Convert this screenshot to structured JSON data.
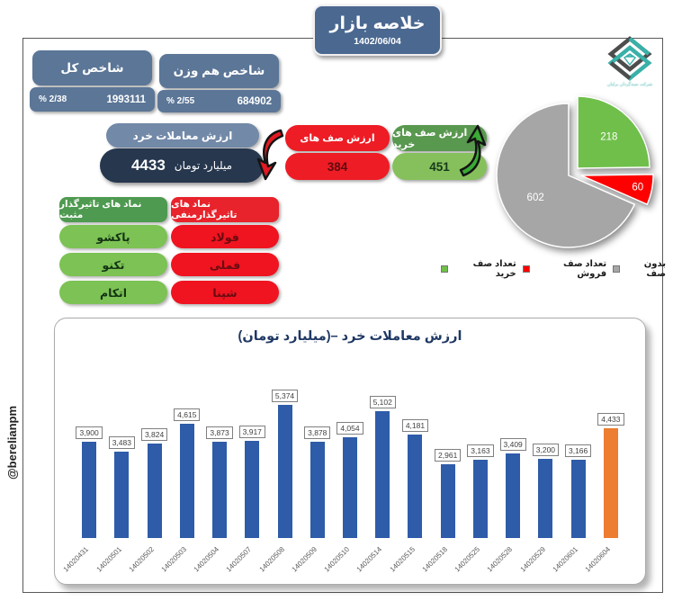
{
  "page": {
    "title": "خلاصه بازار",
    "date": "1402/06/04",
    "watermark": "@berelianpm",
    "logo_caption": "شرکت سبدگردان برلیان"
  },
  "indices": {
    "total": {
      "label": "شاخص کل",
      "value": "1993111",
      "change": "% 2/38"
    },
    "equal_weight": {
      "label": "شاخص هم وزن",
      "value": "684902",
      "change": "% 2/55"
    }
  },
  "retail_trade": {
    "label": "ارزش معاملات خرد",
    "value": "4433",
    "unit": "میلیارد تومان"
  },
  "queues": {
    "sell": {
      "label": "ارزش صف های",
      "value": "384"
    },
    "buy": {
      "label": "ارزش صف های خرید",
      "value": "451"
    }
  },
  "symbols": {
    "positive": {
      "header": "نماد های تاثیرگذار مثبت",
      "items": [
        "پاکشو",
        "تکنو",
        "اتکام"
      ]
    },
    "negative": {
      "header": "نماد های تاثیرگذارمنفی",
      "items": [
        "فولاد",
        "فملی",
        "شپنا"
      ]
    }
  },
  "chart_data": [
    {
      "type": "pie",
      "title": "",
      "labels": [
        "تعداد صف خرید",
        "تعداد صف فروش",
        "بدون صف"
      ],
      "values": [
        218,
        60,
        602
      ],
      "colors": [
        "#6fbf4a",
        "#fe0000",
        "#a6a6a6"
      ],
      "legend": [
        {
          "label": "بدون صف",
          "color": "#a6a6a6"
        },
        {
          "label": "تعداد صف فروش",
          "color": "#fe0000"
        },
        {
          "label": "تعداد صف خرید",
          "color": "#6fbf4a"
        }
      ],
      "legend_position": "bottom"
    },
    {
      "type": "bar",
      "title": "ارزش معاملات خرد –(میلیارد تومان)",
      "categories": [
        "14020431",
        "14020501",
        "14020502",
        "14020503",
        "14020504",
        "14020507",
        "14020508",
        "14020509",
        "14020510",
        "14020514",
        "14020515",
        "14020518",
        "14020525",
        "14020528",
        "14020529",
        "14020601",
        "14020604"
      ],
      "values": [
        3900,
        3483,
        3824,
        4615,
        3873,
        3917,
        5374,
        3878,
        4054,
        5102,
        4181,
        2961,
        3163,
        3409,
        3200,
        3166,
        4433
      ],
      "labels": [
        "3,900",
        "3,483",
        "3,824",
        "4,615",
        "3,873",
        "3,917",
        "5,374",
        "3,878",
        "4,054",
        "5,102",
        "4,181",
        "2,961",
        "3,163",
        "3,409",
        "3,200",
        "3,166",
        "4,433"
      ],
      "xlabel": "",
      "ylabel": "",
      "ylim": [
        0,
        5600
      ],
      "grid": false,
      "bar_color": "#2e5ca8",
      "highlight_color": "#ed7d31",
      "highlight_index": 16
    }
  ],
  "colors": {
    "slate": "#5b7697",
    "navy": "#26374e",
    "red": "#ee1c25",
    "green_dark": "#4e9a50",
    "green_light": "#7cc254",
    "bar_blue": "#2e5ca8",
    "bar_orange": "#ed7d31"
  }
}
